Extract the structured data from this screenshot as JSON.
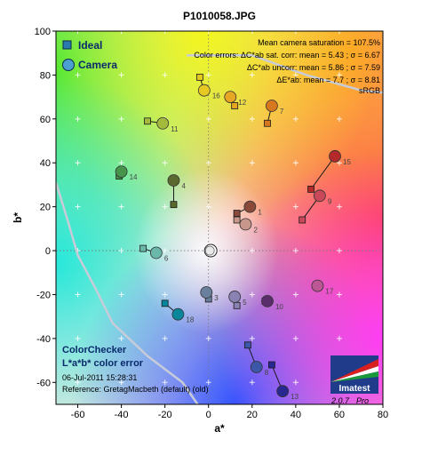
{
  "chart_data": {
    "type": "scatter",
    "title": "P1010058.JPG",
    "xlabel": "a*",
    "ylabel": "b*",
    "xlim": [
      -70,
      80
    ],
    "ylim": [
      -70,
      100
    ],
    "xticks": [
      -60,
      -40,
      -20,
      0,
      20,
      40,
      60,
      80
    ],
    "yticks": [
      100,
      80,
      60,
      40,
      20,
      0,
      -20,
      -40,
      -60
    ],
    "legend": [
      {
        "name": "Ideal",
        "marker": "square"
      },
      {
        "name": "Camera",
        "marker": "circle"
      }
    ],
    "stats": [
      "Mean camera saturation = 107.5%",
      "Color errors: ΔC*ab sat. corr:  mean = 5.43 ;  σ = 6.67",
      "ΔC*ab uncorr:  mean = 5.86 ;  σ = 7.59",
      "ΔE*ab:  mean = 7.7 ;  σ = 8.81",
      "sRGB"
    ],
    "caption": {
      "line1": "ColorChecker",
      "line2": "L*a*b* color error",
      "date": "06-Jul-2011 15:28:31",
      "reference": "Reference: GretagMacbeth (default) (old)"
    },
    "logo": {
      "name": "Imatest",
      "version": "2.0.7",
      "edition": "Pro"
    },
    "points": [
      {
        "id": "1",
        "ideal": [
          13,
          17
        ],
        "camera": [
          19,
          20
        ],
        "color": "#8a4a3a"
      },
      {
        "id": "2",
        "ideal": [
          13,
          14
        ],
        "camera": [
          17,
          12
        ],
        "color": "#c8968a"
      },
      {
        "id": "3",
        "ideal": [
          0,
          -22
        ],
        "camera": [
          -1,
          -19
        ],
        "color": "#6a7e9e"
      },
      {
        "id": "4",
        "ideal": [
          -16,
          21
        ],
        "camera": [
          -16,
          32
        ],
        "color": "#5a6a2e"
      },
      {
        "id": "5",
        "ideal": [
          13,
          -25
        ],
        "camera": [
          12,
          -21
        ],
        "color": "#8a82b2"
      },
      {
        "id": "6",
        "ideal": [
          -30,
          1
        ],
        "camera": [
          -24,
          -1
        ],
        "color": "#6ab8aa"
      },
      {
        "id": "7",
        "ideal": [
          27,
          58
        ],
        "camera": [
          29,
          66
        ],
        "color": "#d8781e"
      },
      {
        "id": "8",
        "ideal": [
          18,
          -43
        ],
        "camera": [
          22,
          -53
        ],
        "color": "#3c56a8"
      },
      {
        "id": "9",
        "ideal": [
          43,
          14
        ],
        "camera": [
          51,
          25
        ],
        "color": "#c8485a"
      },
      {
        "id": "10",
        "ideal": [
          26,
          -23
        ],
        "camera": [
          27,
          -23
        ],
        "color": "#5a2e6a"
      },
      {
        "id": "11",
        "ideal": [
          -28,
          59
        ],
        "camera": [
          -21,
          58
        ],
        "color": "#a4ba3c"
      },
      {
        "id": "12",
        "ideal": [
          12,
          66
        ],
        "camera": [
          10,
          70
        ],
        "color": "#e6a624"
      },
      {
        "id": "13",
        "ideal": [
          29,
          -52
        ],
        "camera": [
          34,
          -64
        ],
        "color": "#282890"
      },
      {
        "id": "14",
        "ideal": [
          -41,
          34
        ],
        "camera": [
          -40,
          36
        ],
        "color": "#46944a"
      },
      {
        "id": "15",
        "ideal": [
          47,
          28
        ],
        "camera": [
          58,
          43
        ],
        "color": "#b42a2a"
      },
      {
        "id": "16",
        "ideal": [
          -4,
          79
        ],
        "camera": [
          -2,
          73
        ],
        "color": "#e6c822"
      },
      {
        "id": "17",
        "ideal": [
          50,
          -16
        ],
        "camera": [
          50,
          -16
        ],
        "color": "#bc5694"
      },
      {
        "id": "18",
        "ideal": [
          -20,
          -24
        ],
        "camera": [
          -14,
          -29
        ],
        "color": "#08869c"
      }
    ],
    "neutral": [
      1,
      0
    ],
    "gamut_boundary": [
      [
        -10,
        89
      ],
      [
        20,
        89
      ],
      [
        45,
        80
      ],
      [
        70,
        73
      ],
      [
        80,
        72
      ]
    ],
    "gamut_boundary_lower": [
      [
        -70,
        31
      ],
      [
        -65,
        15
      ],
      [
        -60,
        -2
      ],
      [
        -52,
        -17
      ],
      [
        -44,
        -33
      ],
      [
        -28,
        -48
      ],
      [
        -12,
        -60
      ],
      [
        -5,
        -70
      ]
    ]
  }
}
